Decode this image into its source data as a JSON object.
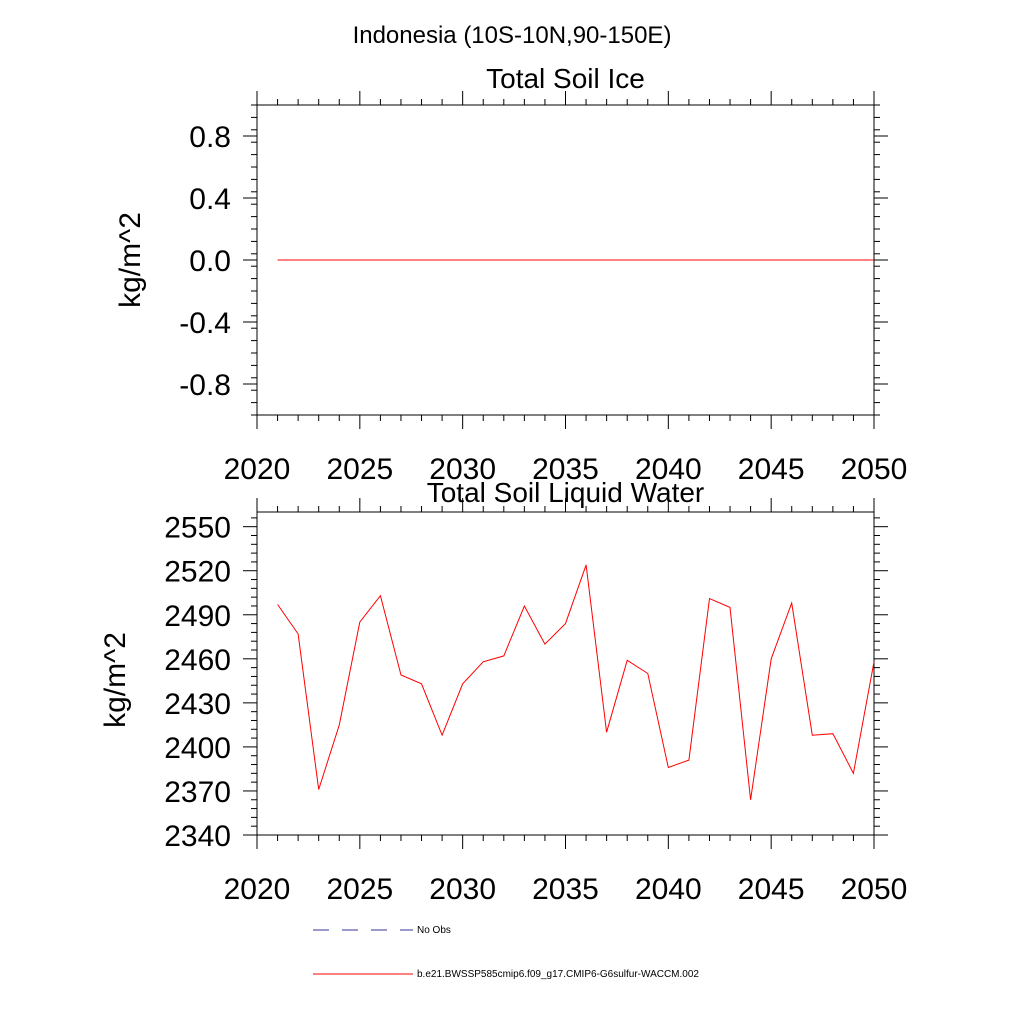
{
  "figure": {
    "title": "Indonesia (10S-10N,90-150E)"
  },
  "chart_data": [
    {
      "type": "line",
      "title": "Total Soil Ice",
      "xlabel": "",
      "ylabel": "kg/m^2",
      "xlim": [
        2020,
        2050
      ],
      "ylim": [
        -1.0,
        1.0
      ],
      "xticks": [
        2020,
        2025,
        2030,
        2035,
        2040,
        2045,
        2050
      ],
      "yticks": [
        -0.8,
        -0.4,
        0.0,
        0.4,
        0.8
      ],
      "ytick_labels": [
        "-0.8",
        "-0.4",
        "0.0",
        "0.4",
        "0.8"
      ],
      "grid": false,
      "series": [
        {
          "name": "b.e21.BWSSP585cmip6.f09_g17.CMIP6-G6sulfur-WACCM.002",
          "color": "#ff0000",
          "x": [
            2021,
            2022,
            2023,
            2024,
            2025,
            2026,
            2027,
            2028,
            2029,
            2030,
            2031,
            2032,
            2033,
            2034,
            2035,
            2036,
            2037,
            2038,
            2039,
            2040,
            2041,
            2042,
            2043,
            2044,
            2045,
            2046,
            2047,
            2048,
            2049,
            2050
          ],
          "values": [
            0,
            0,
            0,
            0,
            0,
            0,
            0,
            0,
            0,
            0,
            0,
            0,
            0,
            0,
            0,
            0,
            0,
            0,
            0,
            0,
            0,
            0,
            0,
            0,
            0,
            0,
            0,
            0,
            0,
            0
          ]
        }
      ]
    },
    {
      "type": "line",
      "title": "Total Soil Liquid Water",
      "xlabel": "",
      "ylabel": "kg/m^2",
      "xlim": [
        2020,
        2050
      ],
      "ylim": [
        2340,
        2560
      ],
      "xticks": [
        2020,
        2025,
        2030,
        2035,
        2040,
        2045,
        2050
      ],
      "yticks": [
        2340,
        2370,
        2400,
        2430,
        2460,
        2490,
        2520,
        2550
      ],
      "ytick_labels": [
        "2340",
        "2370",
        "2400",
        "2430",
        "2460",
        "2490",
        "2520",
        "2550"
      ],
      "grid": false,
      "series": [
        {
          "name": "b.e21.BWSSP585cmip6.f09_g17.CMIP6-G6sulfur-WACCM.002",
          "color": "#ff0000",
          "x": [
            2021,
            2022,
            2023,
            2024,
            2025,
            2026,
            2027,
            2028,
            2029,
            2030,
            2031,
            2032,
            2033,
            2034,
            2035,
            2036,
            2037,
            2038,
            2039,
            2040,
            2041,
            2042,
            2043,
            2044,
            2045,
            2046,
            2047,
            2048,
            2049,
            2050
          ],
          "values": [
            2497,
            2477,
            2371,
            2415,
            2485,
            2503,
            2449,
            2443,
            2408,
            2443,
            2458,
            2462,
            2496,
            2470,
            2484,
            2524,
            2410,
            2459,
            2450,
            2386,
            2391,
            2501,
            2495,
            2364,
            2460,
            2498,
            2408,
            2409,
            2382,
            2458
          ]
        }
      ]
    }
  ],
  "legend": {
    "placement": "bottom",
    "items": [
      {
        "label": "No Obs",
        "style": "dashed",
        "color": "#333399"
      },
      {
        "label": "b.e21.BWSSP585cmip6.f09_g17.CMIP6-G6sulfur-WACCM.002",
        "style": "solid",
        "color": "#ff0000"
      }
    ]
  }
}
